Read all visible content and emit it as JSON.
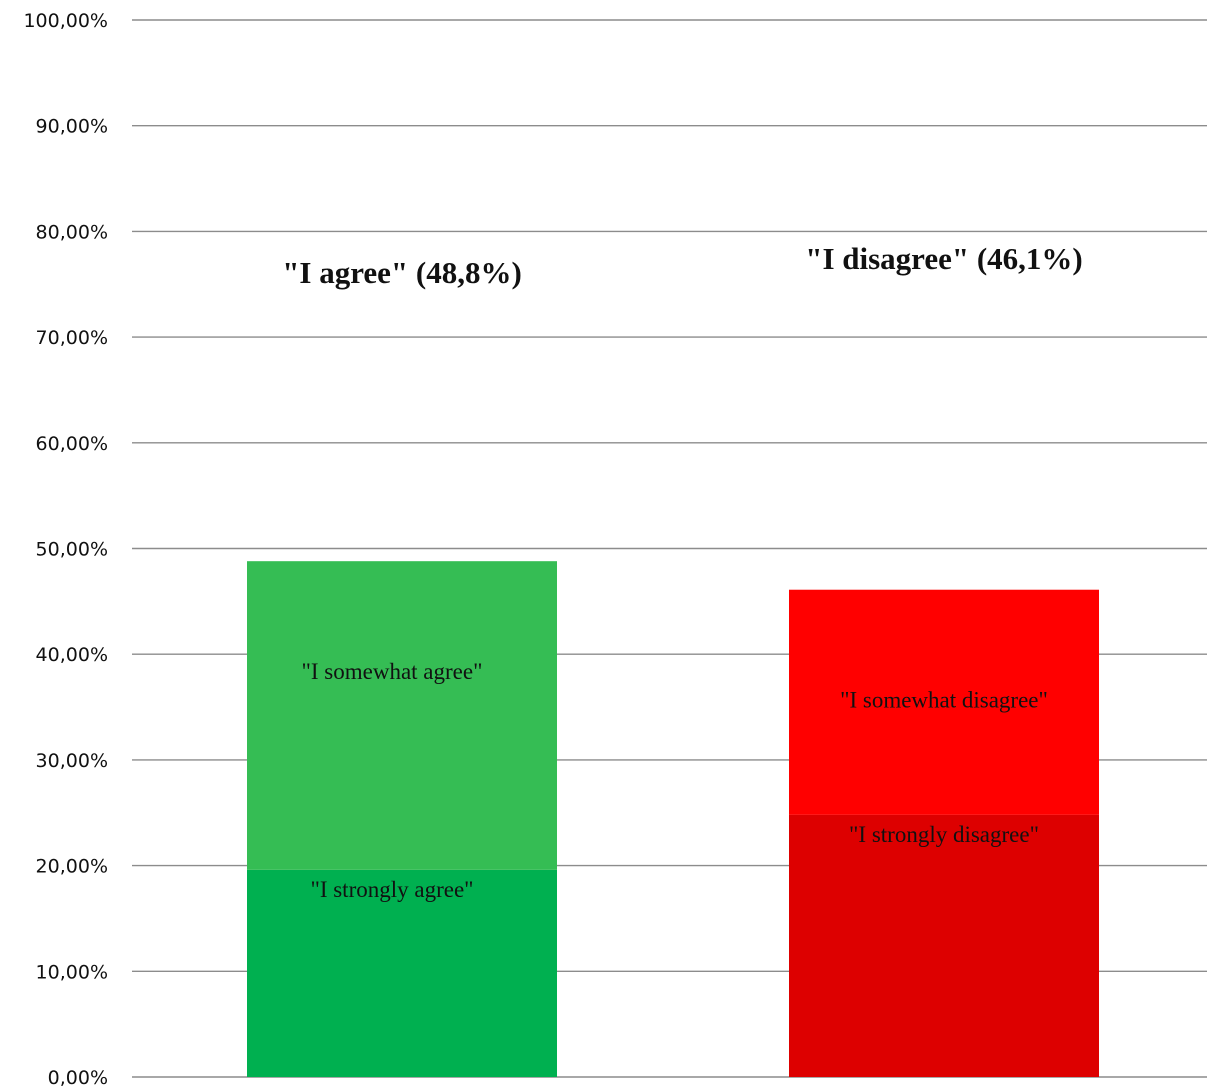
{
  "chart_data": {
    "type": "bar",
    "stacked": true,
    "categories": [
      "\"I agree\" (48,8%)",
      "\"I disagree\" (46,1%)"
    ],
    "stacks": [
      {
        "total": 48.8,
        "segments": [
          {
            "label": "\"I strongly agree\"",
            "value": 19.6,
            "color": "#00b050"
          },
          {
            "label": "\"I somewhat agree\"",
            "value": 29.2,
            "color": "#35bd54"
          }
        ]
      },
      {
        "total": 46.1,
        "segments": [
          {
            "label": "\"I strongly disagree\"",
            "value": 24.8,
            "color": "#dd0000"
          },
          {
            "label": "\"I somewhat disagree\"",
            "value": 21.3,
            "color": "#ff0000"
          }
        ]
      }
    ],
    "ylim": [
      0,
      100
    ],
    "yticks": [
      "0,00%",
      "10,00%",
      "20,00%",
      "30,00%",
      "40,00%",
      "50,00%",
      "60,00%",
      "70,00%",
      "80,00%",
      "90,00%",
      "100,00%"
    ],
    "grid": true,
    "legend": "none",
    "title": "",
    "xlabel": "",
    "ylabel": ""
  }
}
